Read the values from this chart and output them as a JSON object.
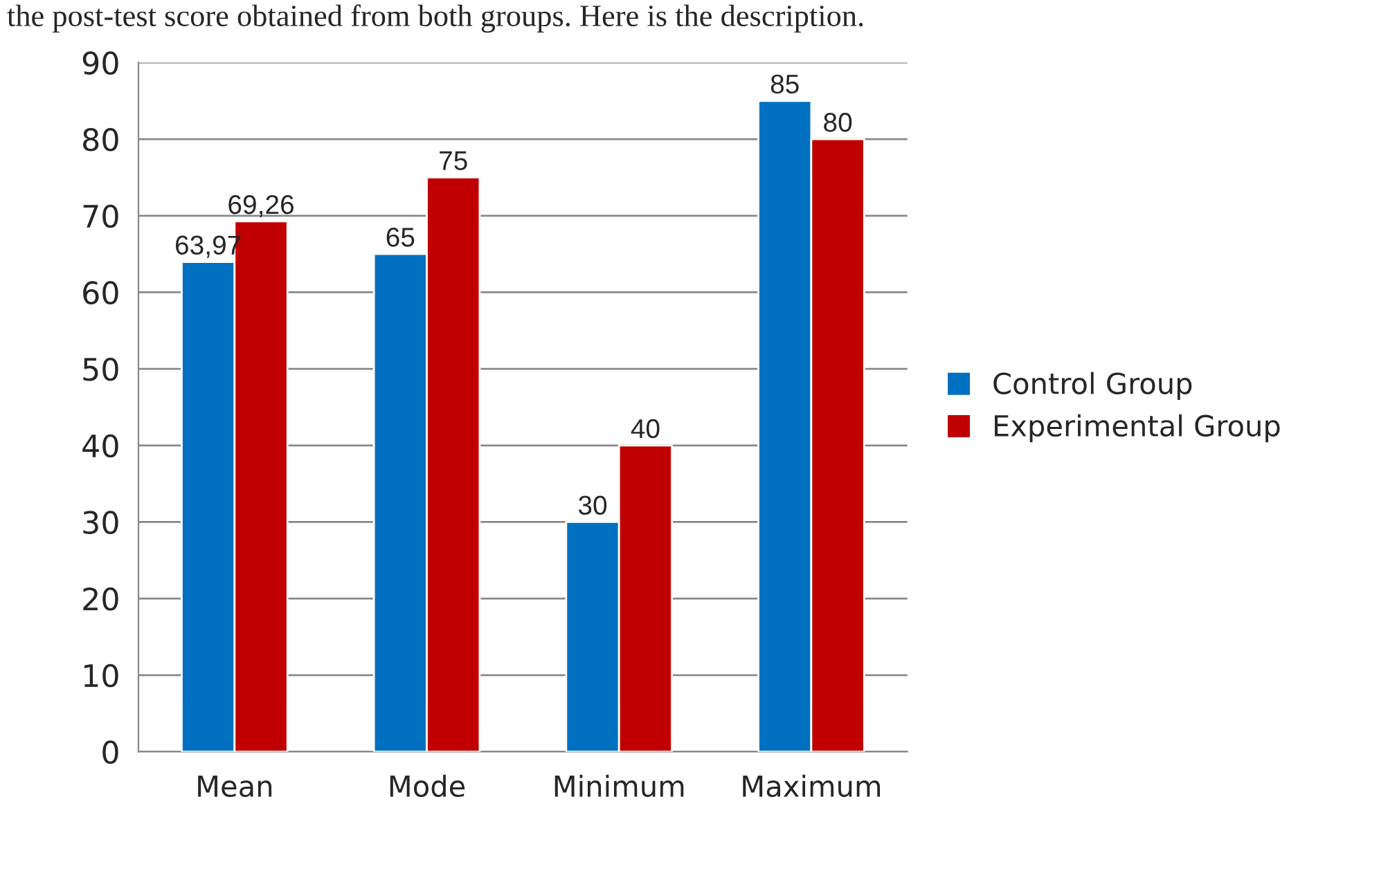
{
  "chart_data": {
    "type": "bar",
    "annotations": [
      "the post-test score obtained from both groups. Here is the description."
    ],
    "categories": [
      "Mean",
      "Mode",
      "Minimum",
      "Maximum"
    ],
    "series": [
      {
        "name": "Control Group",
        "color": "#0070c0",
        "values": [
          63.97,
          65,
          30,
          85
        ],
        "value_labels": [
          "63,97",
          "65",
          "30",
          "85"
        ]
      },
      {
        "name": "Experimental Group",
        "color": "#c00000",
        "values": [
          69.26,
          75,
          40,
          80
        ],
        "value_labels": [
          "69,26",
          "75",
          "40",
          "80"
        ]
      }
    ],
    "ylim": [
      0,
      90
    ],
    "yticks": [
      0,
      10,
      20,
      30,
      40,
      50,
      60,
      70,
      80,
      90
    ],
    "grid": "y",
    "legend": "right"
  }
}
